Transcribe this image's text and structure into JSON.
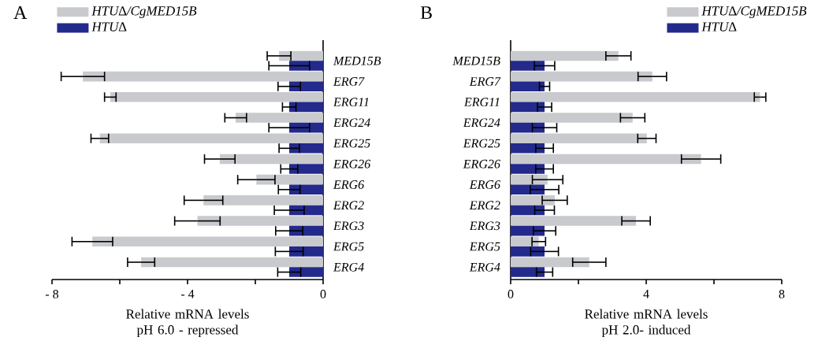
{
  "chart_data": [
    {
      "type": "bar",
      "orientation": "horizontal",
      "title": "A",
      "xlabel": "Relative mRNA levels pH 6.0 - repressed",
      "categories": [
        "MED15B",
        "ERG7",
        "ERG11",
        "ERG24",
        "ERG25",
        "ERG26",
        "ERG6",
        "ERG2",
        "ERG3",
        "ERG5",
        "ERG4"
      ],
      "series": [
        {
          "name": "HTU∆/CgMED15B",
          "color": "#c8cacd",
          "values": [
            -1.3,
            -7.09,
            -6.28,
            -2.58,
            -6.59,
            -3.05,
            -1.97,
            -3.53,
            -3.71,
            -6.81,
            -5.37
          ],
          "errors": [
            0.35,
            0.64,
            0.17,
            0.32,
            0.26,
            0.45,
            0.55,
            0.57,
            0.67,
            0.6,
            0.4
          ]
        },
        {
          "name": "HTU∆",
          "color": "#232a8c",
          "values": [
            -1,
            -1,
            -1,
            -1,
            -1,
            -1,
            -1,
            -1,
            -1,
            -1,
            -1
          ],
          "errors": [
            0.6,
            0.33,
            0.2,
            0.6,
            0.3,
            0.25,
            0.32,
            0.44,
            0.4,
            0.41,
            0.34
          ]
        }
      ],
      "xlim": [
        -8,
        0
      ],
      "xticks": [
        {
          "value": -8,
          "label": "- 8"
        },
        {
          "value": -6,
          "label": null
        },
        {
          "value": -4,
          "label": "- 4"
        },
        {
          "value": -2,
          "label": null
        },
        0
      ],
      "legend": "top left"
    },
    {
      "type": "bar",
      "orientation": "horizontal",
      "title": "B",
      "xlabel": "Relative mRNA levels pH 2.0- induced",
      "categories": [
        "MED15B",
        "ERG7",
        "ERG11",
        "ERG24",
        "ERG25",
        "ERG26",
        "ERG6",
        "ERG2",
        "ERG3",
        "ERG5",
        "ERG4"
      ],
      "series": [
        {
          "name": "HTU∆/CgMED15B",
          "color": "#c8cacd",
          "values": [
            3.18,
            4.18,
            7.36,
            3.6,
            4.02,
            5.62,
            1.09,
            1.3,
            3.7,
            0.83,
            2.32
          ],
          "errors": [
            0.37,
            0.42,
            0.17,
            0.36,
            0.27,
            0.58,
            0.45,
            0.37,
            0.42,
            0.2,
            0.49
          ]
        },
        {
          "name": "HTU∆",
          "color": "#232a8c",
          "values": [
            1,
            1,
            1,
            1,
            1,
            1,
            1,
            1,
            1,
            1,
            1
          ],
          "errors": [
            0.3,
            0.15,
            0.21,
            0.36,
            0.26,
            0.26,
            0.42,
            0.29,
            0.33,
            0.41,
            0.24
          ]
        }
      ],
      "xlim": [
        0,
        8
      ],
      "xticks": [
        0,
        {
          "value": 2,
          "label": null
        },
        4,
        {
          "value": 6,
          "label": null
        },
        8
      ],
      "legend": "top right"
    }
  ]
}
